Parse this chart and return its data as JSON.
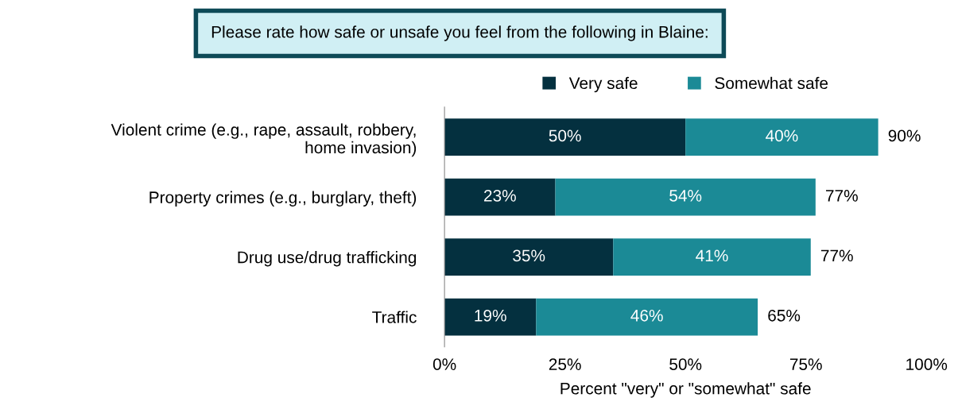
{
  "chart_data": {
    "type": "bar",
    "orientation": "horizontal",
    "stacked": true,
    "title": "Please rate how safe or unsafe you feel from the following in Blaine:",
    "xlabel": "Percent \"very\" or \"somewhat\" safe",
    "categories": [
      "Violent crime (e.g., rape, assault, robbery, home invasion)",
      "Property crimes (e.g., burglary, theft)",
      "Drug use/drug trafficking",
      "Traffic"
    ],
    "series": [
      {
        "name": "Very safe",
        "color": "#04303f",
        "values": [
          50,
          23,
          35,
          19
        ],
        "value_labels": [
          "50%",
          "23%",
          "35%",
          "19%"
        ]
      },
      {
        "name": "Somewhat safe",
        "color": "#1b8a96",
        "values": [
          40,
          54,
          41,
          46
        ],
        "value_labels": [
          "40%",
          "54%",
          "41%",
          "46%"
        ]
      }
    ],
    "totals": [
      "90%",
      "77%",
      "77%",
      "65%"
    ],
    "xlim": [
      0,
      100
    ],
    "xticks": [
      {
        "value": 0,
        "label": "0%"
      },
      {
        "value": 25,
        "label": "25%"
      },
      {
        "value": 50,
        "label": "50%"
      },
      {
        "value": 75,
        "label": "75%"
      },
      {
        "value": 100,
        "label": "100%"
      }
    ],
    "legend": "top",
    "grid": false
  }
}
